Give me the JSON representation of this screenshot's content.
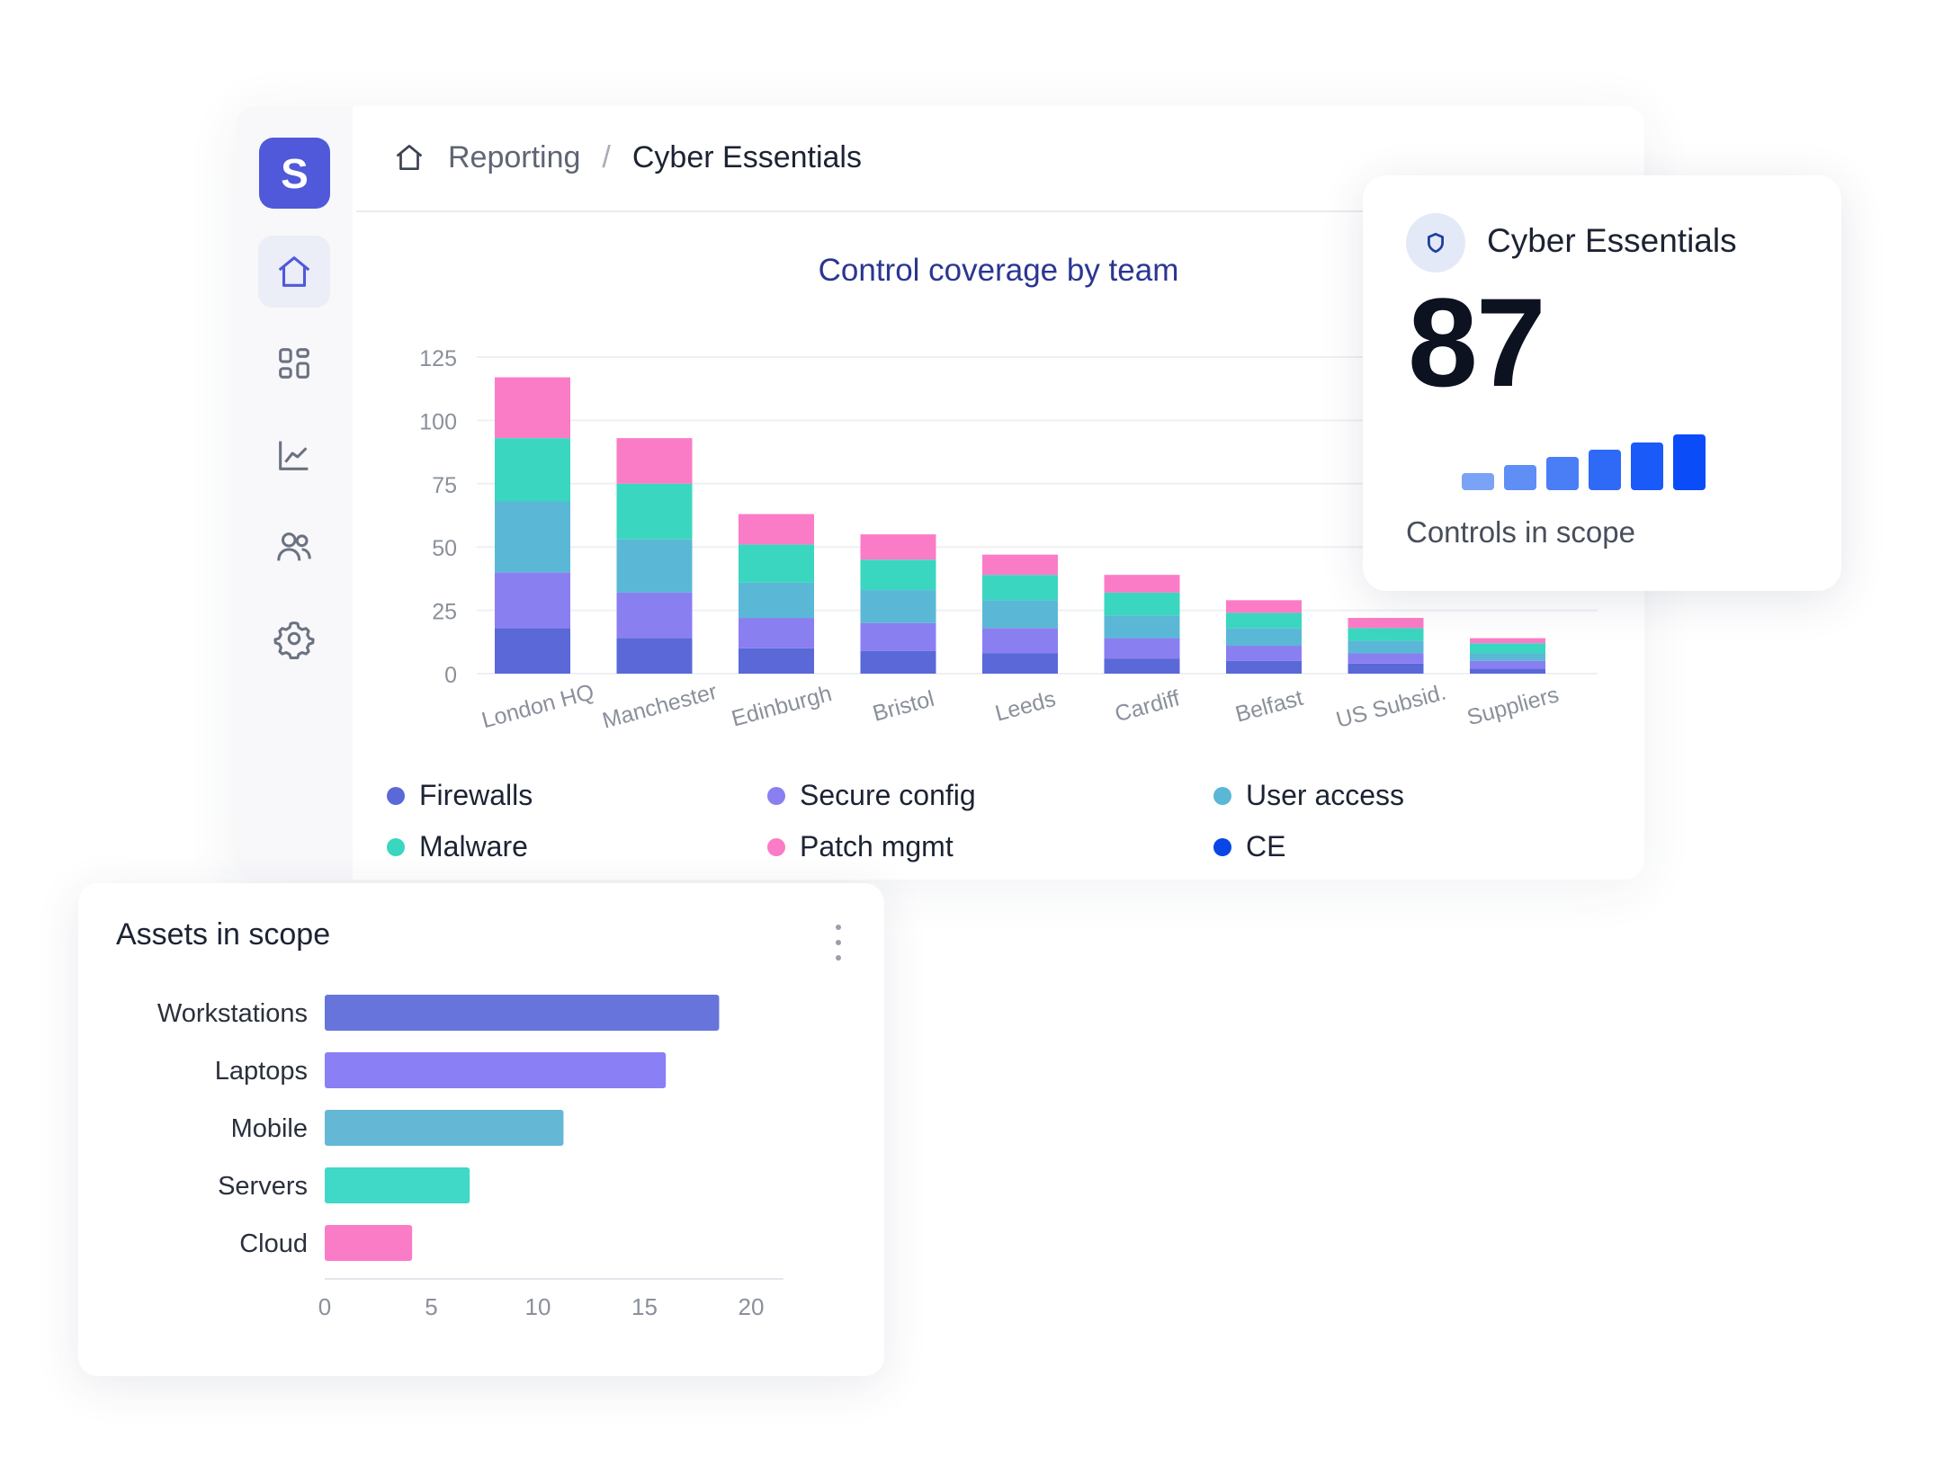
{
  "app": {
    "logo_letter": "S"
  },
  "sidebar": {
    "items": [
      {
        "icon": "home-icon",
        "active": true
      },
      {
        "icon": "dashboard-grid-icon",
        "active": false
      },
      {
        "icon": "line-chart-icon",
        "active": false
      },
      {
        "icon": "users-icon",
        "active": false
      },
      {
        "icon": "settings-gear-icon",
        "active": false
      }
    ]
  },
  "breadcrumb": {
    "icon": "home-icon",
    "parent": "Reporting",
    "separator": "/",
    "current": "Cyber Essentials"
  },
  "kpi": {
    "icon": "shield-icon",
    "title": "Cyber Essentials",
    "value": "87",
    "label": "Controls in scope",
    "bar_colors": [
      "#7aa3f5",
      "#5f8ef5",
      "#4a7ef6",
      "#2f6af7",
      "#1a5af8",
      "#0b4cf9"
    ],
    "bar_levels": [
      0.3,
      0.45,
      0.6,
      0.72,
      0.85,
      1.0
    ]
  },
  "colors": {
    "firewalls": "#5a68d8",
    "secure_config": "#8a7ff0",
    "user_access": "#5ab8d6",
    "malware": "#3bd6c0",
    "patch_mgmt": "#fb7cc6",
    "ce": "#0a45e8"
  },
  "legend": [
    {
      "label": "Firewalls",
      "color": "#5a68d8"
    },
    {
      "label": "Secure config",
      "color": "#8a7ff0"
    },
    {
      "label": "User access",
      "color": "#5ab8d6"
    },
    {
      "label": "Malware",
      "color": "#3bd6c0"
    },
    {
      "label": "Patch mgmt",
      "color": "#fb7cc6"
    },
    {
      "label": "CE",
      "color": "#0a45e8"
    }
  ],
  "assets": {
    "title": "Assets in scope"
  },
  "chart_data": [
    {
      "type": "bar",
      "stacked": true,
      "title": "Control coverage by team",
      "categories": [
        "London HQ",
        "Manchester",
        "Edinburgh",
        "Bristol",
        "Leeds",
        "Cardiff",
        "Belfast",
        "US Subsid.",
        "Suppliers"
      ],
      "yticks": [
        0,
        25,
        50,
        75,
        100,
        125
      ],
      "ylim": [
        0,
        125
      ],
      "grid": true,
      "series": [
        {
          "name": "Firewalls",
          "color": "#5a68d8",
          "values": [
            18,
            14,
            10,
            9,
            8,
            6,
            5,
            4,
            2
          ]
        },
        {
          "name": "Secure config",
          "color": "#8a7ff0",
          "values": [
            22,
            18,
            12,
            11,
            10,
            8,
            6,
            4,
            3
          ]
        },
        {
          "name": "User access",
          "color": "#5ab8d6",
          "values": [
            28,
            21,
            14,
            13,
            11,
            9,
            7,
            5,
            3
          ]
        },
        {
          "name": "Malware",
          "color": "#3bd6c0",
          "values": [
            25,
            22,
            15,
            12,
            10,
            9,
            6,
            5,
            4
          ]
        },
        {
          "name": "Patch mgmt",
          "color": "#fb7cc6",
          "values": [
            24,
            18,
            12,
            10,
            8,
            7,
            5,
            4,
            2
          ]
        }
      ]
    },
    {
      "type": "bar",
      "orientation": "horizontal",
      "title": "Assets in scope",
      "categories": [
        "Workstations",
        "Laptops",
        "Mobile",
        "Servers",
        "Cloud"
      ],
      "values": [
        18.5,
        16,
        11.2,
        6.8,
        4.1
      ],
      "colors": [
        "#6674dc",
        "#8a7ff5",
        "#65b8d5",
        "#40d8c6",
        "#fb7cc6"
      ],
      "xticks": [
        0,
        5,
        10,
        15,
        20
      ],
      "xlim": [
        0,
        22
      ]
    }
  ]
}
